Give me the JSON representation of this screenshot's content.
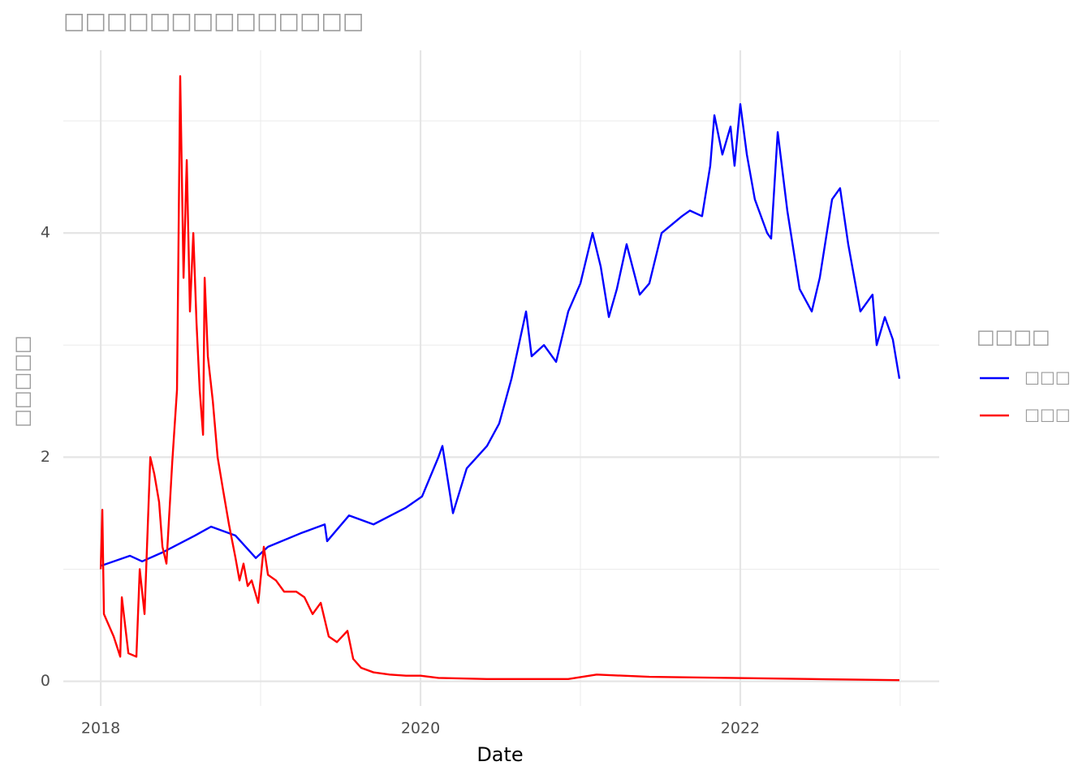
{
  "chart_data": {
    "type": "line",
    "title": "□□□□□□□□□□□□□□",
    "x_label": "Date",
    "y_label": "□□□□□",
    "legend_title": "□□□□",
    "legend_position": "right",
    "grid": true,
    "xlim": [
      2017.766,
      2023.244
    ],
    "ylim": [
      -0.22,
      5.63
    ],
    "xticks": [
      2018,
      2020,
      2022
    ],
    "yticks": [
      0,
      2,
      4
    ],
    "xminorticks": [
      2019,
      2021,
      2023
    ],
    "yminorticks": [
      1,
      3,
      5
    ],
    "series": [
      {
        "name": "□□□",
        "color": "#0000ff",
        "x": [
          2018.0,
          2018.183,
          2018.259,
          2018.386,
          2018.589,
          2018.69,
          2018.843,
          2018.97,
          2019.046,
          2019.249,
          2019.401,
          2019.416,
          2019.553,
          2019.706,
          2019.909,
          2020.01,
          2020.112,
          2020.137,
          2020.203,
          2020.289,
          2020.416,
          2020.492,
          2020.569,
          2020.66,
          2020.695,
          2020.772,
          2020.848,
          2020.924,
          2021.0,
          2021.076,
          2021.127,
          2021.178,
          2021.228,
          2021.289,
          2021.371,
          2021.431,
          2021.508,
          2021.635,
          2021.685,
          2021.761,
          2021.812,
          2021.838,
          2021.888,
          2021.939,
          2021.964,
          2022.0,
          2022.041,
          2022.091,
          2022.168,
          2022.193,
          2022.234,
          2022.294,
          2022.371,
          2022.447,
          2022.497,
          2022.574,
          2022.624,
          2022.675,
          2022.751,
          2022.827,
          2022.853,
          2022.904,
          2022.954,
          2022.995
        ],
        "values": [
          1.03,
          1.12,
          1.07,
          1.15,
          1.3,
          1.38,
          1.3,
          1.1,
          1.2,
          1.32,
          1.4,
          1.25,
          1.48,
          1.4,
          1.55,
          1.65,
          2.0,
          2.1,
          1.5,
          1.9,
          2.1,
          2.3,
          2.7,
          3.3,
          2.9,
          3.0,
          2.85,
          3.3,
          3.55,
          4.0,
          3.7,
          3.25,
          3.5,
          3.9,
          3.45,
          3.55,
          4.0,
          4.15,
          4.2,
          4.15,
          4.6,
          5.05,
          4.7,
          4.95,
          4.6,
          5.15,
          4.7,
          4.3,
          4.0,
          3.95,
          4.9,
          4.2,
          3.5,
          3.3,
          3.6,
          4.3,
          4.4,
          3.9,
          3.3,
          3.45,
          3.0,
          3.25,
          3.05,
          2.7
        ]
      },
      {
        "name": "□□□",
        "color": "#ff0000",
        "x": [
          2018.0,
          2018.01,
          2018.02,
          2018.081,
          2018.122,
          2018.132,
          2018.173,
          2018.223,
          2018.244,
          2018.274,
          2018.31,
          2018.335,
          2018.365,
          2018.386,
          2018.411,
          2018.447,
          2018.477,
          2018.497,
          2018.518,
          2018.538,
          2018.558,
          2018.579,
          2018.599,
          2018.619,
          2018.64,
          2018.65,
          2018.67,
          2018.701,
          2018.731,
          2018.766,
          2018.802,
          2018.843,
          2018.868,
          2018.893,
          2018.919,
          2018.944,
          2018.985,
          2019.02,
          2019.046,
          2019.096,
          2019.147,
          2019.223,
          2019.274,
          2019.325,
          2019.376,
          2019.426,
          2019.477,
          2019.543,
          2019.579,
          2019.629,
          2019.706,
          2019.807,
          2019.909,
          2020.0,
          2020.112,
          2020.416,
          2020.924,
          2021.102,
          2021.431,
          2021.939,
          2022.447,
          2022.995
        ],
        "values": [
          1.0,
          1.53,
          0.6,
          0.4,
          0.22,
          0.75,
          0.25,
          0.22,
          1.0,
          0.6,
          2.0,
          1.85,
          1.6,
          1.2,
          1.05,
          1.95,
          2.6,
          5.4,
          3.6,
          4.65,
          3.3,
          4.0,
          3.2,
          2.6,
          2.2,
          3.6,
          2.9,
          2.5,
          2.0,
          1.7,
          1.4,
          1.1,
          0.9,
          1.05,
          0.85,
          0.9,
          0.7,
          1.2,
          0.95,
          0.9,
          0.8,
          0.8,
          0.75,
          0.6,
          0.7,
          0.4,
          0.35,
          0.45,
          0.2,
          0.12,
          0.08,
          0.06,
          0.05,
          0.05,
          0.03,
          0.02,
          0.02,
          0.06,
          0.04,
          0.03,
          0.02,
          0.01
        ]
      }
    ]
  }
}
